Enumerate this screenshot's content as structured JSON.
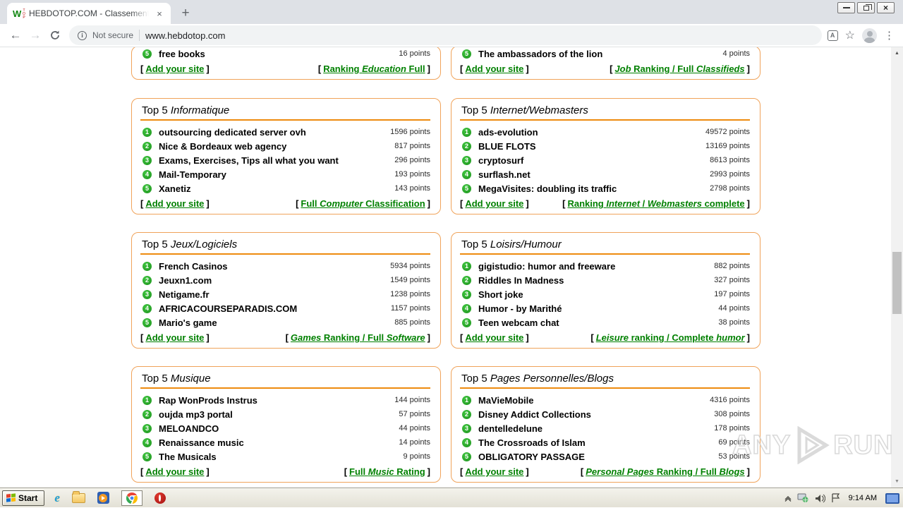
{
  "browser": {
    "tab": {
      "title": "HEBDOTOP.COM - Classement de sit",
      "favicon_letter": "W",
      "favicon_small": "TOP"
    },
    "address": {
      "security": "Not secure",
      "url": "www.hebdotop.com"
    }
  },
  "icons": {
    "back": "←",
    "forward": "→",
    "star": "☆",
    "menu_dots": "⋮",
    "tab_close": "×",
    "window_close": "×",
    "new_tab": "+",
    "info": "i",
    "translate_letter": "A",
    "scroll_up": "▲",
    "scroll_down": "▼"
  },
  "colors": {
    "box_border_orange": "#f0a35a",
    "title_rule_orange": "#ee8b0f",
    "link_green": "#008000",
    "rank_badge_green": "#1d941d"
  },
  "content": {
    "bracket_open": "[",
    "bracket_close": "]",
    "partial_boxes": [
      {
        "item": {
          "rank": "5",
          "name": "free books",
          "points": "16 points"
        },
        "add_link": "Add your site",
        "ranking_segments": [
          {
            "text": "Ranking ",
            "italic": false
          },
          {
            "text": "Education",
            "italic": true
          },
          {
            "text": " Full",
            "italic": false
          }
        ]
      },
      {
        "item": {
          "rank": "5",
          "name": "The ambassadors of the lion",
          "points": "4 points"
        },
        "add_link": "Add your site",
        "ranking_segments": [
          {
            "text": "Job",
            "italic": true
          },
          {
            "text": " Ranking / Full ",
            "italic": false
          },
          {
            "text": "Classifieds",
            "italic": true
          }
        ]
      }
    ],
    "boxes": [
      {
        "title_prefix": "Top 5 ",
        "category": "Informatique",
        "items": [
          {
            "rank": "1",
            "name": "outsourcing dedicated server ovh",
            "points": "1596 points"
          },
          {
            "rank": "2",
            "name": "Nice & Bordeaux web agency",
            "points": "817 points"
          },
          {
            "rank": "3",
            "name": "Exams, Exercises, Tips all what you want",
            "points": "296 points"
          },
          {
            "rank": "4",
            "name": "Mail-Temporary",
            "points": "193 points"
          },
          {
            "rank": "5",
            "name": "Xanetiz",
            "points": "143 points"
          }
        ],
        "add_link": "Add your site",
        "ranking_segments": [
          {
            "text": "Full ",
            "italic": false
          },
          {
            "text": "Computer",
            "italic": true
          },
          {
            "text": " Classification",
            "italic": false
          }
        ]
      },
      {
        "title_prefix": "Top 5 ",
        "category": "Internet/Webmasters",
        "items": [
          {
            "rank": "1",
            "name": "ads-evolution",
            "points": "49572 points"
          },
          {
            "rank": "2",
            "name": "BLUE FLOTS",
            "points": "13169 points"
          },
          {
            "rank": "3",
            "name": "cryptosurf",
            "points": "8613 points"
          },
          {
            "rank": "4",
            "name": "surflash.net",
            "points": "2993 points"
          },
          {
            "rank": "5",
            "name": "MegaVisites: doubling its traffic",
            "points": "2798 points"
          }
        ],
        "add_link": "Add your site",
        "ranking_segments": [
          {
            "text": "Ranking ",
            "italic": false
          },
          {
            "text": "Internet",
            "italic": true
          },
          {
            "text": " / ",
            "italic": false
          },
          {
            "text": "Webmasters",
            "italic": true
          },
          {
            "text": " complete",
            "italic": false
          }
        ]
      },
      {
        "title_prefix": "Top 5 ",
        "category": "Jeux/Logiciels",
        "items": [
          {
            "rank": "1",
            "name": "French Casinos",
            "points": "5934 points"
          },
          {
            "rank": "2",
            "name": "Jeuxn1.com",
            "points": "1549 points"
          },
          {
            "rank": "3",
            "name": "Netigame.fr",
            "points": "1238 points"
          },
          {
            "rank": "4",
            "name": "AFRICACOURSEPARADIS.COM",
            "points": "1157 points"
          },
          {
            "rank": "5",
            "name": "Mario's game",
            "points": "885 points"
          }
        ],
        "add_link": "Add your site",
        "ranking_segments": [
          {
            "text": "Games",
            "italic": true
          },
          {
            "text": " Ranking / Full ",
            "italic": false
          },
          {
            "text": "Software",
            "italic": true
          }
        ]
      },
      {
        "title_prefix": "Top 5 ",
        "category": "Loisirs/Humour",
        "items": [
          {
            "rank": "1",
            "name": "gigistudio: humor and freeware",
            "points": "882 points"
          },
          {
            "rank": "2",
            "name": "Riddles In Madness",
            "points": "327 points"
          },
          {
            "rank": "3",
            "name": "Short joke",
            "points": "197 points"
          },
          {
            "rank": "4",
            "name": "Humor - by Marithé",
            "points": "44 points"
          },
          {
            "rank": "5",
            "name": "Teen webcam chat",
            "points": "38 points"
          }
        ],
        "add_link": "Add your site",
        "ranking_segments": [
          {
            "text": "Leisure",
            "italic": true
          },
          {
            "text": " ranking / Complete ",
            "italic": false
          },
          {
            "text": "humor",
            "italic": true
          }
        ]
      },
      {
        "title_prefix": "Top 5 ",
        "category": "Musique",
        "items": [
          {
            "rank": "1",
            "name": "Rap WonProds Instrus",
            "points": "144 points"
          },
          {
            "rank": "2",
            "name": "oujda mp3 portal",
            "points": "57 points"
          },
          {
            "rank": "3",
            "name": "MELOANDCO",
            "points": "44 points"
          },
          {
            "rank": "4",
            "name": "Renaissance music",
            "points": "14 points"
          },
          {
            "rank": "5",
            "name": "The Musicals",
            "points": "9 points"
          }
        ],
        "add_link": "Add your site",
        "ranking_segments": [
          {
            "text": "Full ",
            "italic": false
          },
          {
            "text": "Music",
            "italic": true
          },
          {
            "text": " Rating",
            "italic": false
          }
        ]
      },
      {
        "title_prefix": "Top 5 ",
        "category": "Pages Personnelles/Blogs",
        "items": [
          {
            "rank": "1",
            "name": "MaVieMobile",
            "points": "4316 points"
          },
          {
            "rank": "2",
            "name": "Disney Addict Collections",
            "points": "308 points"
          },
          {
            "rank": "3",
            "name": "dentelledelune",
            "points": "178 points"
          },
          {
            "rank": "4",
            "name": "The Crossroads of Islam",
            "points": "69 points"
          },
          {
            "rank": "5",
            "name": "OBLIGATORY PASSAGE",
            "points": "53 points"
          }
        ],
        "add_link": "Add your site",
        "ranking_segments": [
          {
            "text": "Personal Pages",
            "italic": true
          },
          {
            "text": " Ranking / Full ",
            "italic": false
          },
          {
            "text": "Blogs",
            "italic": true
          }
        ]
      }
    ]
  },
  "watermark": {
    "left": "ANY",
    "right": "RUN"
  },
  "taskbar": {
    "start": "Start",
    "clock": "9:14 AM"
  }
}
